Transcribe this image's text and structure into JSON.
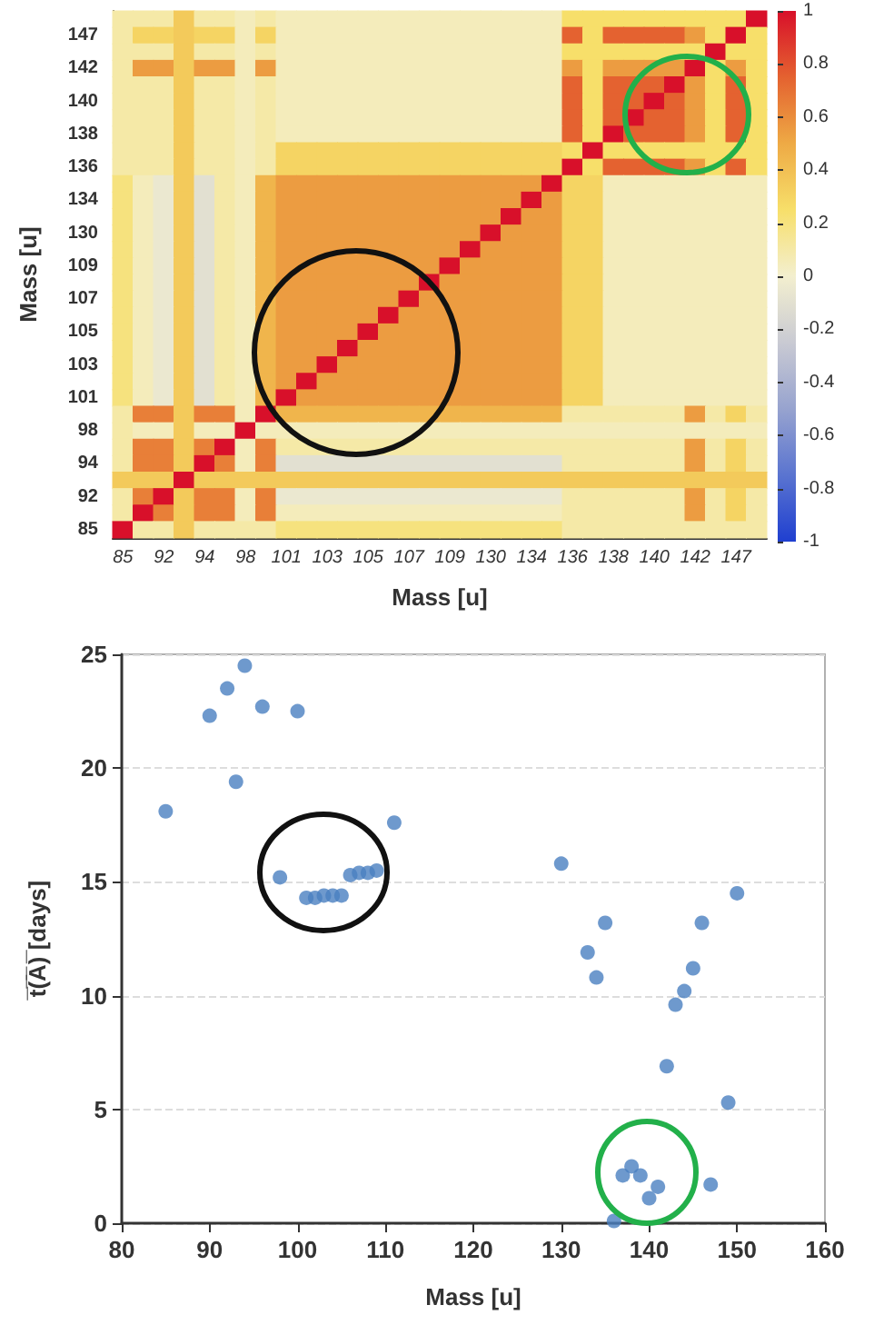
{
  "chart_data": [
    {
      "type": "heatmap",
      "xlabel": "Mass [u]",
      "ylabel": "Mass [u]",
      "categories": [
        "85",
        null,
        "92",
        null,
        "94",
        null,
        "98",
        null,
        "101",
        null,
        "103",
        null,
        "105",
        null,
        "107",
        null,
        "109",
        null,
        "130",
        null,
        "134",
        null,
        "136",
        null,
        "138",
        null,
        "140",
        null,
        "142",
        null,
        "147",
        null
      ],
      "y_categories": [
        null,
        "147",
        null,
        "142",
        null,
        "140",
        null,
        "138",
        null,
        "136",
        null,
        "134",
        null,
        "130",
        null,
        "109",
        null,
        "107",
        null,
        "105",
        null,
        "103",
        null,
        "101",
        null,
        "98",
        null,
        "94",
        null,
        "92",
        null,
        "85"
      ],
      "clim": [
        -1,
        1
      ],
      "cticks": [
        -1,
        -0.8,
        -0.6,
        -0.4,
        -0.2,
        0,
        0.2,
        0.4,
        0.6,
        0.8,
        1
      ],
      "cells": [
        [
          0.1,
          0.1,
          0.1,
          0.35,
          0.1,
          0.1,
          0.05,
          0.1,
          0.05,
          0.05,
          0.05,
          0.05,
          0.05,
          0.05,
          0.05,
          0.05,
          0.05,
          0.05,
          0.05,
          0.05,
          0.05,
          0.05,
          0.25,
          0.25,
          0.25,
          0.25,
          0.25,
          0.25,
          0.25,
          0.25,
          0.25,
          1
        ],
        [
          0.1,
          0.3,
          0.3,
          0.35,
          0.3,
          0.3,
          0.05,
          0.3,
          0.05,
          0.05,
          0.05,
          0.05,
          0.05,
          0.05,
          0.05,
          0.05,
          0.05,
          0.05,
          0.05,
          0.05,
          0.05,
          0.05,
          0.75,
          0.25,
          0.75,
          0.75,
          0.75,
          0.75,
          0.55,
          0.25,
          1,
          0.25
        ],
        [
          0.1,
          0.1,
          0.1,
          0.35,
          0.1,
          0.1,
          0.05,
          0.1,
          0.05,
          0.05,
          0.05,
          0.05,
          0.05,
          0.05,
          0.05,
          0.05,
          0.05,
          0.05,
          0.05,
          0.05,
          0.05,
          0.05,
          0.25,
          0.25,
          0.25,
          0.25,
          0.25,
          0.25,
          0.25,
          1,
          0.25,
          0.25
        ],
        [
          0.1,
          0.55,
          0.55,
          0.35,
          0.55,
          0.55,
          0.05,
          0.55,
          0.05,
          0.05,
          0.05,
          0.05,
          0.05,
          0.05,
          0.05,
          0.05,
          0.05,
          0.05,
          0.05,
          0.05,
          0.05,
          0.05,
          0.55,
          0.25,
          0.55,
          0.55,
          0.55,
          0.55,
          1,
          0.25,
          0.55,
          0.25
        ],
        [
          0.1,
          0.1,
          0.1,
          0.35,
          0.1,
          0.1,
          0.05,
          0.1,
          0.05,
          0.05,
          0.05,
          0.05,
          0.05,
          0.05,
          0.05,
          0.05,
          0.05,
          0.05,
          0.05,
          0.05,
          0.05,
          0.05,
          0.75,
          0.25,
          0.75,
          0.75,
          0.75,
          1,
          0.55,
          0.25,
          0.75,
          0.25
        ],
        [
          0.1,
          0.1,
          0.1,
          0.35,
          0.1,
          0.1,
          0.05,
          0.1,
          0.05,
          0.05,
          0.05,
          0.05,
          0.05,
          0.05,
          0.05,
          0.05,
          0.05,
          0.05,
          0.05,
          0.05,
          0.05,
          0.05,
          0.75,
          0.25,
          0.75,
          0.75,
          1,
          0.75,
          0.55,
          0.25,
          0.75,
          0.25
        ],
        [
          0.1,
          0.1,
          0.1,
          0.35,
          0.1,
          0.1,
          0.05,
          0.1,
          0.05,
          0.05,
          0.05,
          0.05,
          0.05,
          0.05,
          0.05,
          0.05,
          0.05,
          0.05,
          0.05,
          0.05,
          0.05,
          0.05,
          0.75,
          0.25,
          0.75,
          1,
          0.75,
          0.75,
          0.55,
          0.25,
          0.75,
          0.25
        ],
        [
          0.1,
          0.1,
          0.1,
          0.35,
          0.1,
          0.1,
          0.05,
          0.1,
          0.05,
          0.05,
          0.05,
          0.05,
          0.05,
          0.05,
          0.05,
          0.05,
          0.05,
          0.05,
          0.05,
          0.05,
          0.05,
          0.05,
          0.75,
          0.25,
          1,
          0.75,
          0.75,
          0.75,
          0.55,
          0.25,
          0.75,
          0.25
        ],
        [
          0.1,
          0.1,
          0.1,
          0.35,
          0.1,
          0.1,
          0.05,
          0.1,
          0.3,
          0.3,
          0.3,
          0.3,
          0.3,
          0.3,
          0.3,
          0.3,
          0.3,
          0.3,
          0.3,
          0.3,
          0.3,
          0.3,
          0.25,
          1,
          0.25,
          0.25,
          0.25,
          0.25,
          0.25,
          0.25,
          0.25,
          0.25
        ],
        [
          0.1,
          0.1,
          0.1,
          0.35,
          0.1,
          0.1,
          0.05,
          0.1,
          0.3,
          0.3,
          0.3,
          0.3,
          0.3,
          0.3,
          0.3,
          0.3,
          0.3,
          0.3,
          0.3,
          0.3,
          0.3,
          0.3,
          1,
          0.25,
          0.75,
          0.75,
          0.75,
          0.75,
          0.55,
          0.25,
          0.75,
          0.25
        ],
        [
          0.2,
          0.05,
          -0.05,
          0.35,
          -0.1,
          0.1,
          0.05,
          0.45,
          0.55,
          0.55,
          0.55,
          0.55,
          0.55,
          0.55,
          0.55,
          0.55,
          0.55,
          0.55,
          0.55,
          0.55,
          0.55,
          1,
          0.3,
          0.3,
          0.05,
          0.05,
          0.05,
          0.05,
          0.05,
          0.05,
          0.05,
          0.05
        ],
        [
          0.2,
          0.05,
          -0.05,
          0.35,
          -0.1,
          0.1,
          0.05,
          0.45,
          0.55,
          0.55,
          0.55,
          0.55,
          0.55,
          0.55,
          0.55,
          0.55,
          0.55,
          0.55,
          0.55,
          0.55,
          1,
          0.55,
          0.3,
          0.3,
          0.05,
          0.05,
          0.05,
          0.05,
          0.05,
          0.05,
          0.05,
          0.05
        ],
        [
          0.2,
          0.05,
          -0.05,
          0.35,
          -0.1,
          0.1,
          0.05,
          0.45,
          0.55,
          0.55,
          0.55,
          0.55,
          0.55,
          0.55,
          0.55,
          0.55,
          0.55,
          0.55,
          0.55,
          1,
          0.55,
          0.55,
          0.3,
          0.3,
          0.05,
          0.05,
          0.05,
          0.05,
          0.05,
          0.05,
          0.05,
          0.05
        ],
        [
          0.2,
          0.05,
          -0.05,
          0.35,
          -0.1,
          0.1,
          0.05,
          0.45,
          0.55,
          0.55,
          0.55,
          0.55,
          0.55,
          0.55,
          0.55,
          0.55,
          0.55,
          0.55,
          1,
          0.55,
          0.55,
          0.55,
          0.3,
          0.3,
          0.05,
          0.05,
          0.05,
          0.05,
          0.05,
          0.05,
          0.05,
          0.05
        ],
        [
          0.2,
          0.05,
          -0.05,
          0.35,
          -0.1,
          0.1,
          0.05,
          0.45,
          0.55,
          0.55,
          0.55,
          0.55,
          0.55,
          0.55,
          0.55,
          0.55,
          0.55,
          1,
          0.55,
          0.55,
          0.55,
          0.55,
          0.3,
          0.3,
          0.05,
          0.05,
          0.05,
          0.05,
          0.05,
          0.05,
          0.05,
          0.05
        ],
        [
          0.2,
          0.05,
          -0.05,
          0.35,
          -0.1,
          0.1,
          0.05,
          0.45,
          0.55,
          0.55,
          0.55,
          0.55,
          0.55,
          0.55,
          0.55,
          0.55,
          1,
          0.55,
          0.55,
          0.55,
          0.55,
          0.55,
          0.3,
          0.3,
          0.05,
          0.05,
          0.05,
          0.05,
          0.05,
          0.05,
          0.05,
          0.05
        ],
        [
          0.2,
          0.05,
          -0.05,
          0.35,
          -0.1,
          0.1,
          0.05,
          0.45,
          0.55,
          0.55,
          0.55,
          0.55,
          0.55,
          0.55,
          0.55,
          1,
          0.55,
          0.55,
          0.55,
          0.55,
          0.55,
          0.55,
          0.3,
          0.3,
          0.05,
          0.05,
          0.05,
          0.05,
          0.05,
          0.05,
          0.05,
          0.05
        ],
        [
          0.2,
          0.05,
          -0.05,
          0.35,
          -0.1,
          0.1,
          0.05,
          0.45,
          0.55,
          0.55,
          0.55,
          0.55,
          0.55,
          0.55,
          1,
          0.55,
          0.55,
          0.55,
          0.55,
          0.55,
          0.55,
          0.55,
          0.3,
          0.3,
          0.05,
          0.05,
          0.05,
          0.05,
          0.05,
          0.05,
          0.05,
          0.05
        ],
        [
          0.2,
          0.05,
          -0.05,
          0.35,
          -0.1,
          0.1,
          0.05,
          0.45,
          0.55,
          0.55,
          0.55,
          0.55,
          0.55,
          1,
          0.55,
          0.55,
          0.55,
          0.55,
          0.55,
          0.55,
          0.55,
          0.55,
          0.3,
          0.3,
          0.05,
          0.05,
          0.05,
          0.05,
          0.05,
          0.05,
          0.05,
          0.05
        ],
        [
          0.2,
          0.05,
          -0.05,
          0.35,
          -0.1,
          0.1,
          0.05,
          0.45,
          0.55,
          0.55,
          0.55,
          0.55,
          1,
          0.55,
          0.55,
          0.55,
          0.55,
          0.55,
          0.55,
          0.55,
          0.55,
          0.55,
          0.3,
          0.3,
          0.05,
          0.05,
          0.05,
          0.05,
          0.05,
          0.05,
          0.05,
          0.05
        ],
        [
          0.2,
          0.05,
          -0.05,
          0.35,
          -0.1,
          0.1,
          0.05,
          0.45,
          0.55,
          0.55,
          0.55,
          1,
          0.55,
          0.55,
          0.55,
          0.55,
          0.55,
          0.55,
          0.55,
          0.55,
          0.55,
          0.55,
          0.3,
          0.3,
          0.05,
          0.05,
          0.05,
          0.05,
          0.05,
          0.05,
          0.05,
          0.05
        ],
        [
          0.2,
          0.05,
          -0.05,
          0.35,
          -0.1,
          0.1,
          0.05,
          0.45,
          0.55,
          0.55,
          1,
          0.55,
          0.55,
          0.55,
          0.55,
          0.55,
          0.55,
          0.55,
          0.55,
          0.55,
          0.55,
          0.55,
          0.3,
          0.3,
          0.05,
          0.05,
          0.05,
          0.05,
          0.05,
          0.05,
          0.05,
          0.05
        ],
        [
          0.2,
          0.05,
          -0.05,
          0.35,
          -0.1,
          0.1,
          0.05,
          0.45,
          0.55,
          1,
          0.55,
          0.55,
          0.55,
          0.55,
          0.55,
          0.55,
          0.55,
          0.55,
          0.55,
          0.55,
          0.55,
          0.55,
          0.3,
          0.3,
          0.05,
          0.05,
          0.05,
          0.05,
          0.05,
          0.05,
          0.05,
          0.05
        ],
        [
          0.2,
          0.05,
          -0.05,
          0.35,
          -0.1,
          0.1,
          0.05,
          0.45,
          1,
          0.55,
          0.55,
          0.55,
          0.55,
          0.55,
          0.55,
          0.55,
          0.55,
          0.55,
          0.55,
          0.55,
          0.55,
          0.55,
          0.3,
          0.3,
          0.05,
          0.05,
          0.05,
          0.05,
          0.05,
          0.05,
          0.05,
          0.05
        ],
        [
          0.1,
          0.65,
          0.65,
          0.35,
          0.65,
          0.65,
          0.05,
          1,
          0.45,
          0.45,
          0.45,
          0.45,
          0.45,
          0.45,
          0.45,
          0.45,
          0.45,
          0.45,
          0.45,
          0.45,
          0.45,
          0.45,
          0.1,
          0.1,
          0.1,
          0.1,
          0.1,
          0.1,
          0.55,
          0.1,
          0.3,
          0.1
        ],
        [
          0.1,
          0.05,
          0.05,
          0.35,
          0.05,
          0.05,
          1,
          0.05,
          0.05,
          0.05,
          0.05,
          0.05,
          0.05,
          0.05,
          0.05,
          0.05,
          0.05,
          0.05,
          0.05,
          0.05,
          0.05,
          0.05,
          0.05,
          0.05,
          0.05,
          0.05,
          0.05,
          0.05,
          0.05,
          0.05,
          0.05,
          0.05
        ],
        [
          0.1,
          0.65,
          0.65,
          0.35,
          0.65,
          1,
          0.05,
          0.65,
          0.1,
          0.1,
          0.1,
          0.1,
          0.1,
          0.1,
          0.1,
          0.1,
          0.1,
          0.1,
          0.1,
          0.1,
          0.1,
          0.1,
          0.1,
          0.1,
          0.1,
          0.1,
          0.1,
          0.1,
          0.55,
          0.1,
          0.3,
          0.1
        ],
        [
          0.1,
          0.65,
          0.65,
          0.35,
          1,
          0.65,
          0.05,
          0.65,
          -0.1,
          -0.1,
          -0.1,
          -0.1,
          -0.1,
          -0.1,
          -0.1,
          -0.1,
          -0.1,
          -0.1,
          -0.1,
          -0.1,
          -0.1,
          -0.1,
          0.1,
          0.1,
          0.1,
          0.1,
          0.1,
          0.1,
          0.55,
          0.1,
          0.3,
          0.1
        ],
        [
          0.35,
          0.35,
          0.35,
          1,
          0.35,
          0.35,
          0.35,
          0.35,
          0.35,
          0.35,
          0.35,
          0.35,
          0.35,
          0.35,
          0.35,
          0.35,
          0.35,
          0.35,
          0.35,
          0.35,
          0.35,
          0.35,
          0.35,
          0.35,
          0.35,
          0.35,
          0.35,
          0.35,
          0.35,
          0.35,
          0.35,
          0.35
        ],
        [
          0.1,
          0.65,
          1,
          0.35,
          0.65,
          0.65,
          0.05,
          0.65,
          -0.05,
          -0.05,
          -0.05,
          -0.05,
          -0.05,
          -0.05,
          -0.05,
          -0.05,
          -0.05,
          -0.05,
          -0.05,
          -0.05,
          -0.05,
          -0.05,
          0.1,
          0.1,
          0.1,
          0.1,
          0.1,
          0.1,
          0.55,
          0.1,
          0.3,
          0.1
        ],
        [
          0.1,
          1,
          0.65,
          0.35,
          0.65,
          0.65,
          0.05,
          0.65,
          0.05,
          0.05,
          0.05,
          0.05,
          0.05,
          0.05,
          0.05,
          0.05,
          0.05,
          0.05,
          0.05,
          0.05,
          0.05,
          0.05,
          0.1,
          0.1,
          0.1,
          0.1,
          0.1,
          0.1,
          0.55,
          0.1,
          0.3,
          0.1
        ],
        [
          1,
          0.1,
          0.1,
          0.35,
          0.1,
          0.1,
          0.1,
          0.1,
          0.2,
          0.2,
          0.2,
          0.2,
          0.2,
          0.2,
          0.2,
          0.2,
          0.2,
          0.2,
          0.2,
          0.2,
          0.2,
          0.2,
          0.1,
          0.1,
          0.1,
          0.1,
          0.1,
          0.1,
          0.1,
          0.1,
          0.1,
          0.1
        ]
      ]
    },
    {
      "type": "scatter",
      "xlabel": "Mass [u]",
      "ylabel": "t̅(̅A̅)̅ [days]",
      "xlim": [
        80,
        160
      ],
      "xticks": [
        80,
        90,
        100,
        110,
        120,
        130,
        140,
        150,
        160
      ],
      "ylim": [
        0,
        25
      ],
      "yticks": [
        0,
        5,
        10,
        15,
        20,
        25
      ],
      "grid": "y",
      "marker": "circle",
      "series": [
        {
          "color": "#4a7fc1",
          "x": [
            85,
            90,
            92,
            93,
            94,
            96,
            98,
            100,
            101,
            102,
            103,
            104,
            105,
            106,
            107,
            108,
            109,
            111,
            130,
            133,
            134,
            135,
            136,
            137,
            138,
            139,
            140,
            141,
            142,
            143,
            144,
            145,
            146,
            147,
            149,
            150
          ],
          "values": [
            18.1,
            22.3,
            23.5,
            19.4,
            24.5,
            22.7,
            15.2,
            22.5,
            14.3,
            14.3,
            14.4,
            14.4,
            14.4,
            15.3,
            15.4,
            15.4,
            15.5,
            17.6,
            15.8,
            11.9,
            10.8,
            13.2,
            0.1,
            2.1,
            2.5,
            2.1,
            1.1,
            1.6,
            6.9,
            9.6,
            10.2,
            11.2,
            13.2,
            1.7,
            5.3,
            14.5
          ]
        }
      ]
    }
  ]
}
